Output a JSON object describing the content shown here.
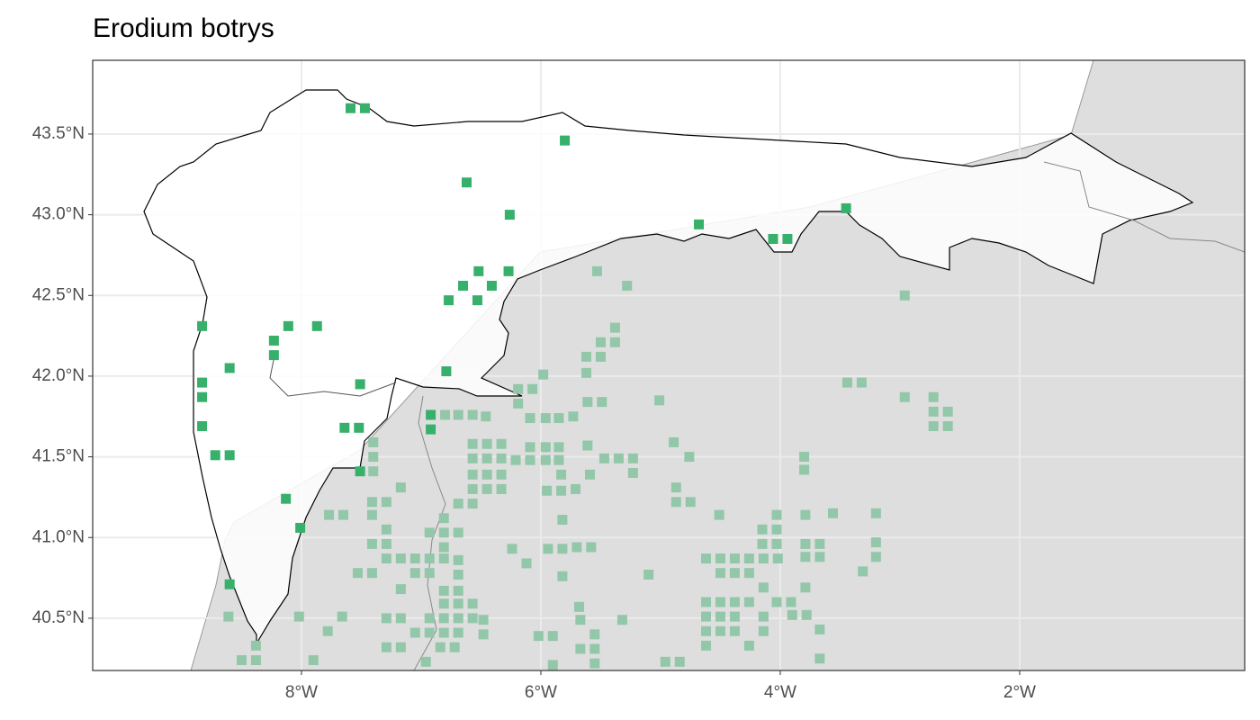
{
  "chart_data": {
    "type": "scatter",
    "title": "Erodium botrys",
    "xlim": [
      -9.744,
      -0.12
    ],
    "ylim": [
      40.176,
      43.957
    ],
    "xticks": [
      {
        "value": -8,
        "label": "8°W"
      },
      {
        "value": -6,
        "label": "6°W"
      },
      {
        "value": -4,
        "label": "4°W"
      },
      {
        "value": -2,
        "label": "2°W"
      }
    ],
    "yticks": [
      {
        "value": 40.5,
        "label": "40.5°N"
      },
      {
        "value": 41,
        "label": "41.0°N"
      },
      {
        "value": 41.5,
        "label": "41.5°N"
      },
      {
        "value": 42,
        "label": "42.0°N"
      },
      {
        "value": 42.5,
        "label": "42.5°N"
      },
      {
        "value": 43,
        "label": "43.0°N"
      },
      {
        "value": 43.5,
        "label": "43.5°N"
      }
    ],
    "grid": true,
    "series": [
      {
        "color": "#37b06c",
        "x": [
          -7.59,
          -7.47,
          -5.8,
          -6.62,
          -6.26,
          -4.68,
          -4.06,
          -3.94,
          -3.45,
          -6.52,
          -6.27,
          -6.65,
          -6.41,
          -6.77,
          -6.53,
          -8.11,
          -7.87,
          -8.23,
          -8.23,
          -8.83,
          -8.6,
          -8.83,
          -8.83,
          -6.79,
          -7.51,
          -8.83,
          -7.64,
          -7.52,
          -6.92,
          -6.92,
          -8.72,
          -8.6,
          -8.13,
          -8.01,
          -7.51,
          -8.6
        ],
        "values": [
          43.66,
          43.66,
          43.46,
          43.2,
          43.0,
          42.94,
          42.85,
          42.85,
          43.04,
          42.65,
          42.65,
          42.56,
          42.56,
          42.47,
          42.47,
          42.31,
          42.31,
          42.22,
          42.13,
          42.31,
          42.05,
          41.96,
          41.87,
          42.03,
          41.95,
          41.69,
          41.68,
          41.68,
          41.76,
          41.67,
          41.51,
          41.51,
          41.24,
          41.06,
          41.41,
          40.71
        ]
      },
      {
        "color": "#93c7aa",
        "x": [
          -5.53,
          -5.28,
          -2.96,
          -5.38,
          -5.5,
          -5.38,
          -5.62,
          -5.5,
          -5.98,
          -5.62,
          -3.44,
          -3.32,
          -6.19,
          -6.07,
          -6.19,
          -5.61,
          -5.49,
          -5.01,
          -2.96,
          -2.72,
          -2.72,
          -2.6,
          -2.72,
          -2.6,
          -6.69,
          -6.57,
          -6.46,
          -6.09,
          -5.96,
          -5.85,
          -5.73,
          -6.8,
          -7.4,
          -6.57,
          -6.45,
          -6.33,
          -6.09,
          -5.96,
          -5.85,
          -5.61,
          -4.89,
          -7.4,
          -6.57,
          -6.45,
          -6.33,
          -6.21,
          -6.09,
          -5.96,
          -5.85,
          -5.47,
          -5.35,
          -5.23,
          -4.76,
          -3.8,
          -7.4,
          -6.57,
          -6.45,
          -6.33,
          -5.83,
          -5.59,
          -5.23,
          -3.8,
          -7.17,
          -6.57,
          -6.45,
          -6.33,
          -5.95,
          -5.83,
          -5.71,
          -4.87,
          -7.41,
          -7.29,
          -6.69,
          -6.57,
          -4.87,
          -4.75,
          -7.77,
          -7.65,
          -7.41,
          -6.81,
          -5.82,
          -4.51,
          -4.03,
          -3.79,
          -3.56,
          -3.2,
          -7.29,
          -6.81,
          -6.69,
          -6.93,
          -4.15,
          -4.03,
          -7.41,
          -7.29,
          -6.81,
          -6.24,
          -5.94,
          -5.82,
          -5.7,
          -5.58,
          -4.15,
          -4.03,
          -3.79,
          -3.67,
          -3.2,
          -7.29,
          -7.17,
          -7.05,
          -6.93,
          -6.81,
          -6.69,
          -6.12,
          -4.62,
          -4.5,
          -4.38,
          -4.26,
          -4.14,
          -4.02,
          -3.79,
          -3.67,
          -3.2,
          -7.53,
          -7.41,
          -7.05,
          -6.93,
          -6.69,
          -5.82,
          -5.1,
          -4.5,
          -4.38,
          -4.26,
          -3.31,
          -7.17,
          -6.81,
          -6.69,
          -4.14,
          -3.79,
          -6.81,
          -6.69,
          -6.57,
          -5.68,
          -4.62,
          -4.5,
          -4.38,
          -4.26,
          -4.03,
          -3.91,
          -8.61,
          -8.02,
          -7.66,
          -7.29,
          -7.17,
          -6.93,
          -6.81,
          -6.69,
          -6.57,
          -6.48,
          -5.67,
          -5.32,
          -4.62,
          -4.5,
          -4.38,
          -4.14,
          -3.9,
          -3.78,
          -7.78,
          -7.05,
          -6.93,
          -6.81,
          -6.69,
          -6.48,
          -6.02,
          -5.9,
          -5.55,
          -4.62,
          -4.5,
          -4.38,
          -4.14,
          -3.67,
          -8.38,
          -7.29,
          -7.17,
          -6.84,
          -6.72,
          -5.67,
          -5.55,
          -4.62,
          -4.26,
          -8.5,
          -8.38,
          -7.9,
          -6.96,
          -5.9,
          -5.55,
          -4.96,
          -4.84,
          -3.67
        ],
        "values": [
          42.65,
          42.56,
          42.5,
          42.3,
          42.21,
          42.21,
          42.12,
          42.12,
          42.01,
          42.02,
          41.96,
          41.96,
          41.92,
          41.92,
          41.83,
          41.84,
          41.84,
          41.85,
          41.87,
          41.87,
          41.78,
          41.78,
          41.69,
          41.69,
          41.76,
          41.76,
          41.75,
          41.74,
          41.74,
          41.74,
          41.75,
          41.76,
          41.59,
          41.58,
          41.58,
          41.58,
          41.56,
          41.56,
          41.56,
          41.57,
          41.59,
          41.5,
          41.49,
          41.49,
          41.49,
          41.48,
          41.48,
          41.48,
          41.48,
          41.49,
          41.49,
          41.49,
          41.5,
          41.5,
          41.41,
          41.39,
          41.39,
          41.39,
          41.39,
          41.39,
          41.4,
          41.42,
          41.31,
          41.3,
          41.3,
          41.3,
          41.29,
          41.29,
          41.3,
          41.31,
          41.22,
          41.22,
          41.21,
          41.21,
          41.22,
          41.22,
          41.14,
          41.14,
          41.14,
          41.12,
          41.11,
          41.14,
          41.14,
          41.14,
          41.15,
          41.15,
          41.05,
          41.03,
          41.03,
          41.03,
          41.05,
          41.05,
          40.96,
          40.96,
          40.94,
          40.93,
          40.93,
          40.93,
          40.94,
          40.94,
          40.96,
          40.96,
          40.96,
          40.96,
          40.97,
          40.87,
          40.87,
          40.87,
          40.87,
          40.87,
          40.86,
          40.84,
          40.87,
          40.87,
          40.87,
          40.87,
          40.87,
          40.87,
          40.88,
          40.88,
          40.88,
          40.78,
          40.78,
          40.78,
          40.78,
          40.77,
          40.76,
          40.77,
          40.78,
          40.78,
          40.78,
          40.79,
          40.68,
          40.67,
          40.67,
          40.69,
          40.69,
          40.59,
          40.59,
          40.59,
          40.57,
          40.6,
          40.6,
          40.6,
          40.6,
          40.6,
          40.6,
          40.51,
          40.51,
          40.51,
          40.5,
          40.5,
          40.5,
          40.5,
          40.5,
          40.5,
          40.49,
          40.49,
          40.49,
          40.51,
          40.51,
          40.51,
          40.51,
          40.52,
          40.52,
          40.42,
          40.41,
          40.41,
          40.41,
          40.41,
          40.4,
          40.39,
          40.39,
          40.4,
          40.42,
          40.42,
          40.42,
          40.42,
          40.43,
          40.33,
          40.32,
          40.32,
          40.32,
          40.32,
          40.31,
          40.31,
          40.33,
          40.33,
          40.24,
          40.24,
          40.24,
          40.23,
          40.21,
          40.22,
          40.23,
          40.23,
          40.25
        ]
      }
    ]
  }
}
